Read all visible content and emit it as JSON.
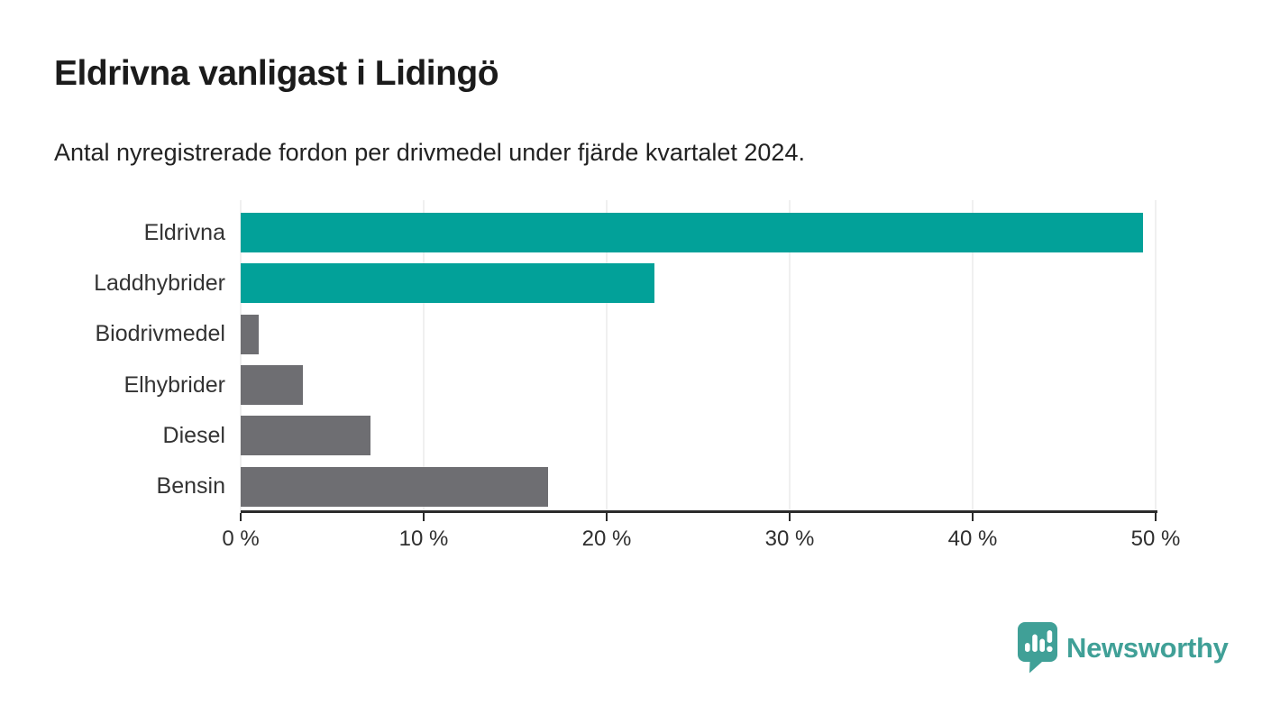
{
  "title": "Eldrivna vanligast i Lidingö",
  "subtitle": "Antal nyregistrerade fordon per drivmedel under fjärde kvartalet 2024.",
  "chart_data": {
    "type": "bar",
    "orientation": "horizontal",
    "title": "Eldrivna vanligast i Lidingö",
    "subtitle": "Antal nyregistrerade fordon per drivmedel under fjärde kvartalet 2024.",
    "categories": [
      "Eldrivna",
      "Laddhybrider",
      "Biodrivmedel",
      "Elhybrider",
      "Diesel",
      "Bensin"
    ],
    "values": [
      49.3,
      22.6,
      1.0,
      3.4,
      7.1,
      16.8
    ],
    "unit": "%",
    "bar_colors": [
      "#02a199",
      "#02a199",
      "#6e6e72",
      "#6e6e72",
      "#6e6e72",
      "#6e6e72"
    ],
    "xlim": [
      0,
      50
    ],
    "x_ticks": [
      0,
      10,
      20,
      30,
      40,
      50
    ],
    "x_tick_labels": [
      "0 %",
      "10 %",
      "20 %",
      "30 %",
      "40 %",
      "50 %"
    ],
    "grid": true,
    "legend": false,
    "highlight_color": "#02a199",
    "default_color": "#6e6e72"
  },
  "colors": {
    "background": "#ffffff",
    "title": "#1b1b1b",
    "subtitle": "#222222",
    "axis": "#2b2b2b",
    "gridline": "#e2e2e2",
    "category_label": "#333333",
    "logo": "#40a097"
  },
  "branding": {
    "logo_text": "Newsworthy",
    "logo_icon": "bar-chart-speech-bubble-icon"
  }
}
